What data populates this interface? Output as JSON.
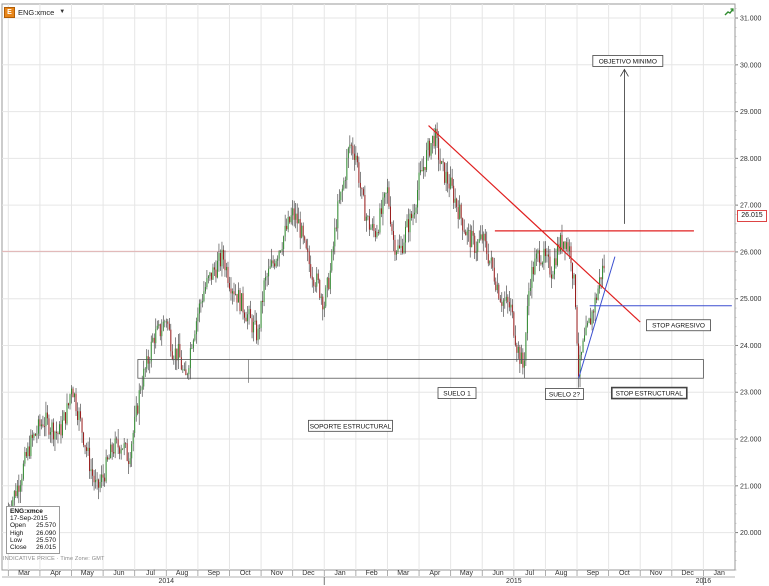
{
  "symbol": "ENG:xmce",
  "colors": {
    "up_candle": "#2e8b2e",
    "down_candle": "#9b1c1c",
    "wick": "#333333",
    "trendline_red": "#e02020",
    "trendline_blue": "#3b4fd0",
    "price_line": "#e0a0a0",
    "grid": "#e6e6e6"
  },
  "info": {
    "symbol": "ENG:xmce",
    "date": "17-Sep-2015",
    "open_label": "Open",
    "open": "25.570",
    "high_label": "High",
    "high": "26.090",
    "low_label": "Low",
    "low": "25.570",
    "close_label": "Close",
    "close": "26.015"
  },
  "footnote": "INDICATIVE PRICE · Time Zone: GMT",
  "last_price": "26.015",
  "chart_data": {
    "type": "candlestick",
    "y_ticks": [
      "20.000",
      "21.000",
      "22.000",
      "23.000",
      "24.000",
      "25.000",
      "26.000",
      "27.000",
      "28.000",
      "29.000",
      "30.000",
      "31.000"
    ],
    "ylim": [
      19.2,
      31.3
    ],
    "x_months": [
      "Mar",
      "Apr",
      "May",
      "Jun",
      "Jul",
      "Aug",
      "Sep",
      "Oct",
      "Nov",
      "Dec",
      "Jan",
      "Feb",
      "Mar",
      "Apr",
      "May",
      "Jun",
      "Jul",
      "Aug",
      "Sep",
      "Oct",
      "Nov",
      "Dec",
      "Jan"
    ],
    "years": [
      {
        "label": "2014",
        "month_index": 5
      },
      {
        "label": "2015",
        "month_index": 16
      },
      {
        "label": "2016",
        "month_index": 22
      }
    ],
    "xlim_months": [
      -0.2,
      23.0
    ],
    "trend_path": [
      [
        0.0,
        20.5
      ],
      [
        0.3,
        21.0
      ],
      [
        0.7,
        21.9
      ],
      [
        1.1,
        22.4
      ],
      [
        1.3,
        22.3
      ],
      [
        1.6,
        22.1
      ],
      [
        1.9,
        22.7
      ],
      [
        2.0,
        23.2
      ],
      [
        2.2,
        22.6
      ],
      [
        2.4,
        22.0
      ],
      [
        2.6,
        21.4
      ],
      [
        2.8,
        20.9
      ],
      [
        3.0,
        21.2
      ],
      [
        3.3,
        21.8
      ],
      [
        3.6,
        21.9
      ],
      [
        3.8,
        21.6
      ],
      [
        4.0,
        22.3
      ],
      [
        4.2,
        23.2
      ],
      [
        4.4,
        23.6
      ],
      [
        4.6,
        24.2
      ],
      [
        4.8,
        24.3
      ],
      [
        5.0,
        24.6
      ],
      [
        5.2,
        23.9
      ],
      [
        5.4,
        23.8
      ],
      [
        5.6,
        23.2
      ],
      [
        5.8,
        24.1
      ],
      [
        6.0,
        24.7
      ],
      [
        6.2,
        25.2
      ],
      [
        6.5,
        25.6
      ],
      [
        6.8,
        25.9
      ],
      [
        7.0,
        25.4
      ],
      [
        7.3,
        25.0
      ],
      [
        7.6,
        24.6
      ],
      [
        7.9,
        24.2
      ],
      [
        8.1,
        25.3
      ],
      [
        8.4,
        25.8
      ],
      [
        8.7,
        26.3
      ],
      [
        9.0,
        26.8
      ],
      [
        9.2,
        26.6
      ],
      [
        9.4,
        26.0
      ],
      [
        9.6,
        25.6
      ],
      [
        9.8,
        25.3
      ],
      [
        10.0,
        24.9
      ],
      [
        10.2,
        25.6
      ],
      [
        10.4,
        26.8
      ],
      [
        10.6,
        27.4
      ],
      [
        10.8,
        28.3
      ],
      [
        11.0,
        28.1
      ],
      [
        11.2,
        27.1
      ],
      [
        11.4,
        26.6
      ],
      [
        11.6,
        26.4
      ],
      [
        11.8,
        26.8
      ],
      [
        12.0,
        27.3
      ],
      [
        12.2,
        26.2
      ],
      [
        12.4,
        26.0
      ],
      [
        12.6,
        26.5
      ],
      [
        12.8,
        26.8
      ],
      [
        13.0,
        27.5
      ],
      [
        13.3,
        28.2
      ],
      [
        13.5,
        28.5
      ],
      [
        13.7,
        27.8
      ],
      [
        14.0,
        27.4
      ],
      [
        14.2,
        27.0
      ],
      [
        14.5,
        26.4
      ],
      [
        14.8,
        26.1
      ],
      [
        15.0,
        26.3
      ],
      [
        15.3,
        25.7
      ],
      [
        15.6,
        25.0
      ],
      [
        15.9,
        24.8
      ],
      [
        16.1,
        24.0
      ],
      [
        16.3,
        23.5
      ],
      [
        16.5,
        25.4
      ],
      [
        16.8,
        26.0
      ],
      [
        17.0,
        25.8
      ],
      [
        17.2,
        25.6
      ],
      [
        17.4,
        26.1
      ],
      [
        17.6,
        26.3
      ],
      [
        17.8,
        26.0
      ],
      [
        17.95,
        25.0
      ],
      [
        18.05,
        23.4
      ],
      [
        18.2,
        24.0
      ],
      [
        18.4,
        24.5
      ],
      [
        18.6,
        25.0
      ],
      [
        18.75,
        25.5
      ],
      [
        18.9,
        25.8
      ]
    ],
    "annotations": {
      "objetivo": "OBJETIVO MINIMO",
      "stop_agresivo": "STOP AGRESIVO",
      "stop_estructural": "STOP ESTRUCTURAL",
      "suelo1": "SUELO 1",
      "suelo2": "SUELO 2?",
      "soporte": "SOPORTE ESTRUCTURAL"
    }
  }
}
